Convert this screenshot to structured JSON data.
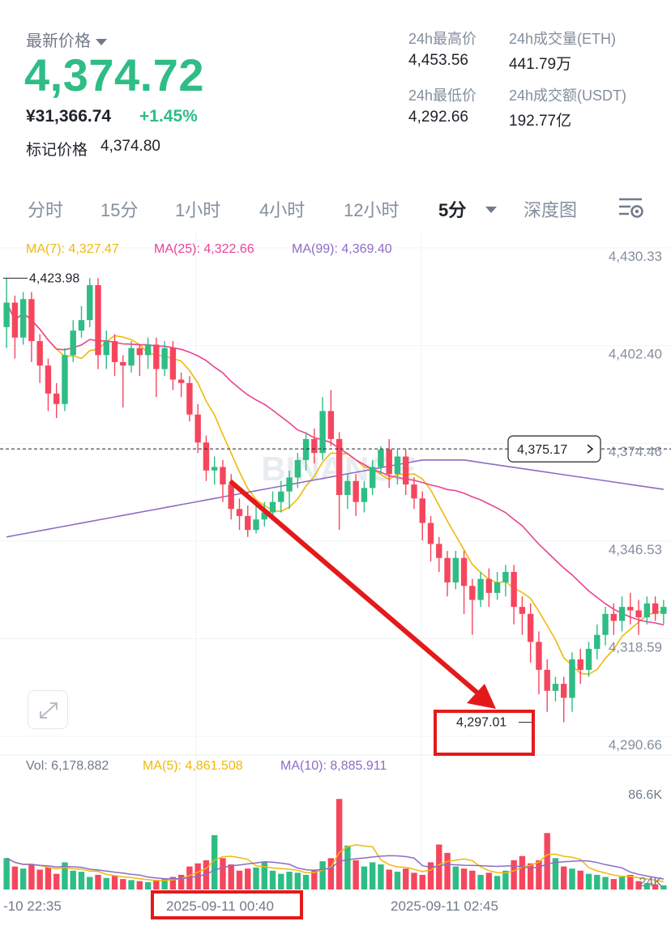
{
  "header": {
    "last_price_label": "最新价格",
    "last_price": "4,374.72",
    "cny_price": "¥31,366.74",
    "change_pct": "+1.45%",
    "mark_price_label": "标记价格",
    "mark_price": "4,374.80",
    "stats": {
      "high_label": "24h最高价",
      "high": "4,453.56",
      "low_label": "24h最低价",
      "low": "4,292.66",
      "vol_eth_label": "24h成交量(ETH)",
      "vol_eth": "441.79万",
      "vol_usdt_label": "24h成交额(USDT)",
      "vol_usdt": "192.77亿"
    }
  },
  "tabs": [
    {
      "label": "分时"
    },
    {
      "label": "15分"
    },
    {
      "label": "1小时"
    },
    {
      "label": "4小时"
    },
    {
      "label": "12小时"
    },
    {
      "label": "5分",
      "active": true
    },
    {
      "label": "深度图"
    }
  ],
  "colors": {
    "up": "#2ebd85",
    "down": "#f6465d",
    "ma7": "#f0b90b",
    "ma25": "#e84393",
    "ma99": "#8e6cc4",
    "annotation": "#e41a1a",
    "text_muted": "#848e9c"
  },
  "chart_data": {
    "type": "candlestick",
    "price_axis_ticks": [
      "4,430.33",
      "4,402.40",
      "4,374.46",
      "4,346.53",
      "4,318.59",
      "4,290.66"
    ],
    "price_range": [
      4286,
      4438
    ],
    "legend": {
      "ma7": "MA(7): 4,327.47",
      "ma25": "MA(25): 4,322.66",
      "ma99": "MA(99): 4,369.40"
    },
    "high_label": "4,423.98",
    "low_label": "4,297.01",
    "current_price_tag": "4,375.17",
    "watermark": "BINANCE",
    "time_labels": [
      "-10 22:35",
      "2025-09-11 00:40",
      "2025-09-11 02:45"
    ],
    "volume": {
      "legend": {
        "vol": "Vol: 6,178.882",
        "ma5": "MA(5): 4,861.508",
        "ma10": "MA(10): 8,885.911"
      },
      "axis_ticks": [
        "86.6K",
        "24K"
      ],
      "max": 93000
    },
    "candles": [
      [
        4410,
        4417,
        4404,
        4423.98
      ],
      [
        4417,
        4407,
        4401,
        4419
      ],
      [
        4407,
        4418,
        4405,
        4420
      ],
      [
        4418,
        4406,
        4400,
        4420
      ],
      [
        4406,
        4399,
        4394,
        4408
      ],
      [
        4399,
        4391,
        4386,
        4401
      ],
      [
        4391,
        4388,
        4384,
        4394
      ],
      [
        4388,
        4402,
        4386,
        4404
      ],
      [
        4402,
        4409,
        4400,
        4412
      ],
      [
        4409,
        4412,
        4407,
        4416
      ],
      [
        4412,
        4422,
        4410,
        4424
      ],
      [
        4422,
        4402,
        4398,
        4424
      ],
      [
        4402,
        4406,
        4398,
        4409
      ],
      [
        4406,
        4400,
        4396,
        4408
      ],
      [
        4400,
        4399,
        4387,
        4402
      ],
      [
        4399,
        4404,
        4397,
        4406
      ],
      [
        4404,
        4402,
        4396,
        4405
      ],
      [
        4402,
        4405,
        4398,
        4407
      ],
      [
        4405,
        4398,
        4390,
        4407
      ],
      [
        4398,
        4404,
        4396,
        4406
      ],
      [
        4404,
        4395,
        4392,
        4406
      ],
      [
        4395,
        4394,
        4390,
        4397
      ],
      [
        4394,
        4385,
        4383,
        4396
      ],
      [
        4385,
        4377,
        4374,
        4388
      ],
      [
        4377,
        4369,
        4366,
        4379
      ],
      [
        4369,
        4370,
        4365,
        4373
      ],
      [
        4370,
        4365,
        4360,
        4372
      ],
      [
        4365,
        4358,
        4355,
        4368
      ],
      [
        4358,
        4356,
        4352,
        4361
      ],
      [
        4356,
        4352,
        4350,
        4359
      ],
      [
        4352,
        4355,
        4351,
        4359
      ],
      [
        4355,
        4357,
        4353,
        4360
      ],
      [
        4357,
        4360,
        4355,
        4363
      ],
      [
        4360,
        4363,
        4357,
        4366
      ],
      [
        4363,
        4367,
        4358,
        4369
      ],
      [
        4367,
        4372,
        4364,
        4374
      ],
      [
        4372,
        4378,
        4369,
        4380
      ],
      [
        4378,
        4374,
        4371,
        4381
      ],
      [
        4374,
        4386,
        4372,
        4390
      ],
      [
        4386,
        4378,
        4376,
        4392
      ],
      [
        4378,
        4362,
        4352,
        4380
      ],
      [
        4362,
        4366,
        4358,
        4368
      ],
      [
        4366,
        4360,
        4356,
        4368
      ],
      [
        4360,
        4364,
        4357,
        4366
      ],
      [
        4364,
        4370,
        4362,
        4372
      ],
      [
        4370,
        4375,
        4368,
        4376
      ],
      [
        4375,
        4368,
        4364,
        4378
      ],
      [
        4368,
        4373,
        4365,
        4375
      ],
      [
        4373,
        4365,
        4362,
        4375
      ],
      [
        4365,
        4361,
        4358,
        4367
      ],
      [
        4361,
        4354,
        4349,
        4363
      ],
      [
        4354,
        4348,
        4343,
        4356
      ],
      [
        4348,
        4344,
        4340,
        4350
      ],
      [
        4344,
        4337,
        4333,
        4346
      ],
      [
        4337,
        4344,
        4335,
        4346
      ],
      [
        4344,
        4336,
        4328,
        4346
      ],
      [
        4336,
        4332,
        4322,
        4338
      ],
      [
        4332,
        4338,
        4330,
        4340
      ],
      [
        4338,
        4334,
        4330,
        4341
      ],
      [
        4334,
        4337,
        4332,
        4340
      ],
      [
        4337,
        4340,
        4333,
        4342
      ],
      [
        4340,
        4330,
        4325,
        4342
      ],
      [
        4330,
        4328,
        4322,
        4333
      ],
      [
        4328,
        4320,
        4314,
        4331
      ],
      [
        4320,
        4312,
        4305,
        4323
      ],
      [
        4312,
        4306,
        4300,
        4315
      ],
      [
        4306,
        4308,
        4303,
        4310
      ],
      [
        4308,
        4304,
        4297.01,
        4310
      ],
      [
        4304,
        4315,
        4300,
        4317
      ],
      [
        4315,
        4312,
        4308,
        4318
      ],
      [
        4312,
        4318,
        4310,
        4320
      ],
      [
        4318,
        4322,
        4315,
        4325
      ],
      [
        4322,
        4328,
        4319,
        4330
      ],
      [
        4328,
        4326,
        4322,
        4331
      ],
      [
        4326,
        4330,
        4323,
        4333
      ],
      [
        4330,
        4329,
        4325,
        4334
      ],
      [
        4329,
        4327,
        4322,
        4332
      ],
      [
        4327,
        4331,
        4325,
        4333
      ],
      [
        4331,
        4328,
        4326,
        4333
      ],
      [
        4328,
        4330,
        4325,
        4332
      ]
    ],
    "volumes": [
      30000,
      22000,
      20000,
      24000,
      19000,
      21000,
      15000,
      26000,
      18000,
      17000,
      12000,
      14000,
      11000,
      13000,
      10000,
      9000,
      8000,
      7000,
      9000,
      10000,
      12000,
      14000,
      22000,
      25000,
      28000,
      52000,
      30000,
      24000,
      18000,
      20000,
      21000,
      26000,
      18000,
      15000,
      17000,
      16000,
      14000,
      19000,
      27000,
      30000,
      86600,
      42000,
      28000,
      22000,
      26000,
      24000,
      19000,
      17000,
      20000,
      16000,
      14000,
      26000,
      43000,
      35000,
      22000,
      20000,
      18000,
      14000,
      16000,
      13000,
      18000,
      28000,
      32000,
      25000,
      28000,
      54000,
      30000,
      22000,
      20000,
      18000,
      15000,
      14000,
      12000,
      10000,
      12000,
      14000,
      8000,
      6000,
      5000,
      4000
    ]
  },
  "annotation": {
    "time_box_label": "2025-09-11 00:40"
  }
}
